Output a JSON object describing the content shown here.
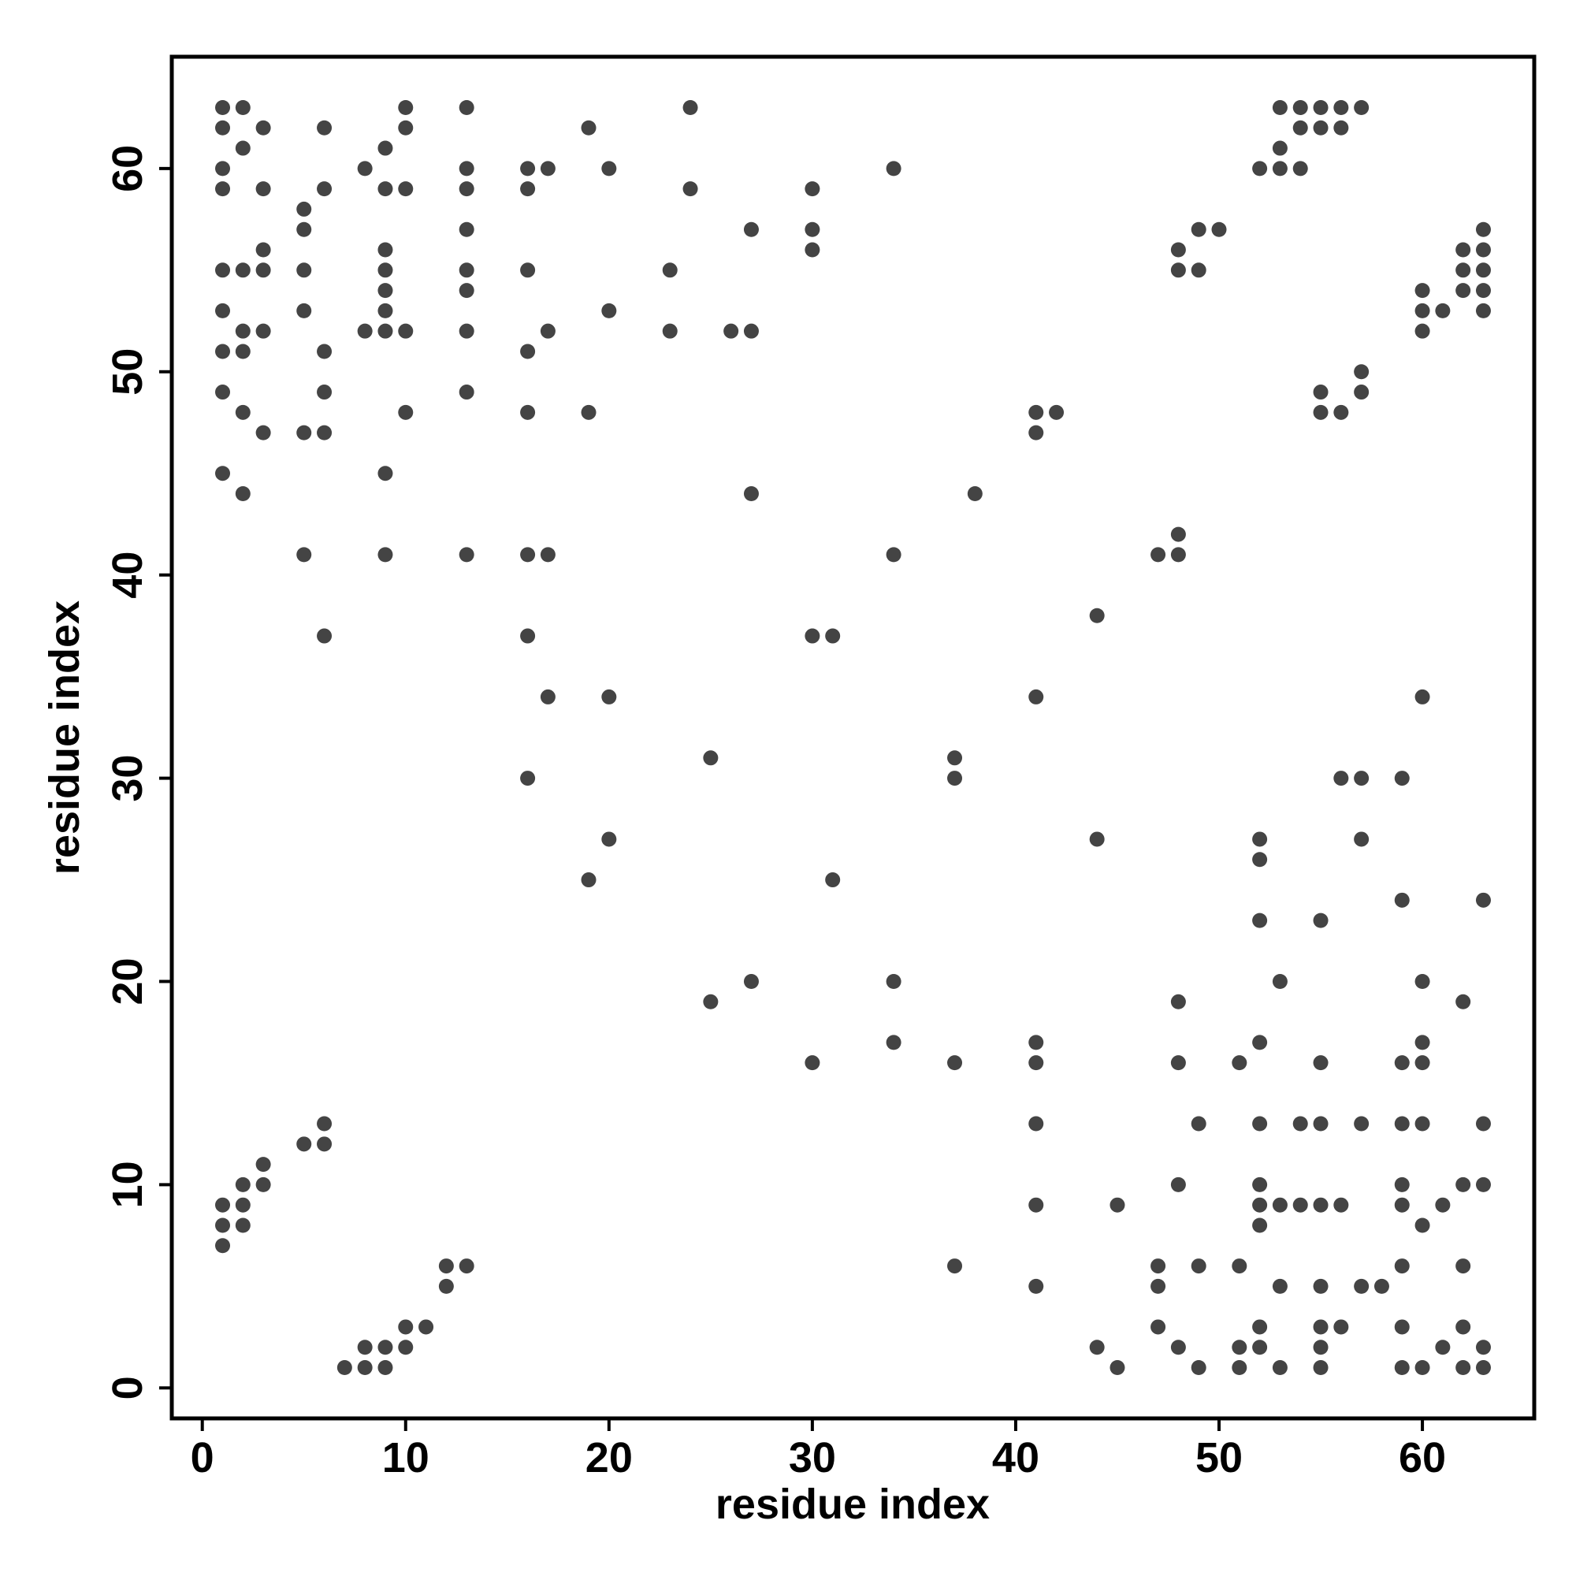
{
  "chart_data": {
    "type": "scatter",
    "x_label": "residue index",
    "y_label": "residue index",
    "xlim": [
      -1.5,
      65.5
    ],
    "ylim": [
      -1.5,
      65.5
    ],
    "xticks": [
      0,
      10,
      20,
      30,
      40,
      50,
      60
    ],
    "yticks": [
      0,
      10,
      20,
      30,
      40,
      50,
      60
    ],
    "grid": false,
    "series": [
      {
        "color": "#444444",
        "x": [
          1,
          1,
          1,
          1,
          1,
          1,
          1,
          1,
          1,
          1,
          1,
          1,
          2,
          2,
          2,
          2,
          2,
          2,
          2,
          2,
          2,
          2,
          3,
          3,
          3,
          3,
          3,
          3,
          3,
          3,
          5,
          5,
          5,
          5,
          5,
          5,
          5,
          6,
          6,
          6,
          6,
          6,
          6,
          6,
          6,
          7,
          8,
          8,
          8,
          8,
          9,
          9,
          9,
          9,
          9,
          9,
          9,
          9,
          9,
          9,
          9,
          10,
          10,
          10,
          10,
          10,
          10,
          10,
          11,
          12,
          12,
          13,
          13,
          13,
          13,
          13,
          13,
          13,
          13,
          13,
          13,
          16,
          16,
          16,
          16,
          16,
          16,
          16,
          16,
          17,
          17,
          17,
          17,
          19,
          19,
          19,
          20,
          20,
          20,
          20,
          23,
          23,
          24,
          24,
          25,
          25,
          26,
          27,
          27,
          27,
          27,
          30,
          30,
          30,
          30,
          30,
          31,
          31,
          34,
          34,
          34,
          34,
          37,
          37,
          37,
          37,
          38,
          41,
          41,
          41,
          41,
          41,
          41,
          41,
          41,
          42,
          44,
          44,
          44,
          45,
          45,
          47,
          47,
          47,
          47,
          48,
          48,
          48,
          48,
          48,
          48,
          48,
          48,
          49,
          49,
          49,
          49,
          49,
          50,
          51,
          51,
          51,
          51,
          52,
          52,
          52,
          52,
          52,
          52,
          52,
          52,
          52,
          52,
          52,
          53,
          53,
          53,
          53,
          53,
          53,
          53,
          54,
          54,
          54,
          54,
          54,
          55,
          55,
          55,
          55,
          55,
          55,
          55,
          55,
          55,
          55,
          55,
          55,
          56,
          56,
          56,
          56,
          56,
          56,
          57,
          57,
          57,
          57,
          57,
          57,
          57,
          58,
          59,
          59,
          59,
          59,
          59,
          59,
          59,
          59,
          59,
          60,
          60,
          60,
          60,
          60,
          60,
          60,
          60,
          60,
          60,
          61,
          61,
          61,
          62,
          62,
          62,
          62,
          62,
          62,
          62,
          62,
          63,
          63,
          63,
          63,
          63,
          63,
          63,
          63,
          63,
          63
        ],
        "values": [
          63,
          62,
          60,
          59,
          55,
          53,
          51,
          49,
          45,
          9,
          8,
          7,
          63,
          61,
          55,
          52,
          51,
          48,
          44,
          10,
          9,
          8,
          62,
          59,
          56,
          55,
          52,
          47,
          11,
          10,
          58,
          57,
          55,
          53,
          47,
          41,
          12,
          62,
          59,
          51,
          49,
          47,
          37,
          13,
          12,
          1,
          60,
          52,
          2,
          1,
          61,
          59,
          56,
          55,
          54,
          53,
          52,
          45,
          41,
          2,
          1,
          63,
          62,
          59,
          52,
          48,
          3,
          2,
          3,
          6,
          5,
          63,
          60,
          59,
          57,
          55,
          54,
          52,
          49,
          41,
          6,
          60,
          59,
          55,
          51,
          48,
          41,
          37,
          30,
          60,
          52,
          41,
          34,
          62,
          48,
          25,
          60,
          53,
          34,
          27,
          55,
          52,
          63,
          59,
          31,
          19,
          52,
          57,
          52,
          44,
          20,
          59,
          57,
          56,
          37,
          16,
          37,
          25,
          60,
          41,
          20,
          17,
          31,
          30,
          16,
          6,
          44,
          48,
          47,
          34,
          17,
          16,
          13,
          9,
          5,
          48,
          38,
          27,
          2,
          9,
          1,
          41,
          6,
          5,
          3,
          56,
          55,
          42,
          41,
          19,
          16,
          10,
          2,
          57,
          55,
          13,
          6,
          1,
          57,
          16,
          6,
          2,
          1,
          60,
          27,
          26,
          23,
          17,
          13,
          10,
          9,
          8,
          3,
          2,
          63,
          61,
          60,
          20,
          9,
          5,
          1,
          63,
          62,
          60,
          13,
          9,
          63,
          62,
          49,
          48,
          23,
          16,
          13,
          9,
          5,
          3,
          2,
          1,
          63,
          62,
          48,
          30,
          9,
          3,
          63,
          50,
          49,
          30,
          27,
          13,
          5,
          5,
          30,
          24,
          16,
          13,
          10,
          9,
          6,
          3,
          1,
          54,
          53,
          52,
          34,
          20,
          17,
          16,
          13,
          8,
          1,
          53,
          9,
          2,
          56,
          55,
          54,
          19,
          10,
          6,
          3,
          1,
          57,
          56,
          55,
          54,
          53,
          24,
          13,
          10,
          2,
          1
        ]
      }
    ]
  }
}
